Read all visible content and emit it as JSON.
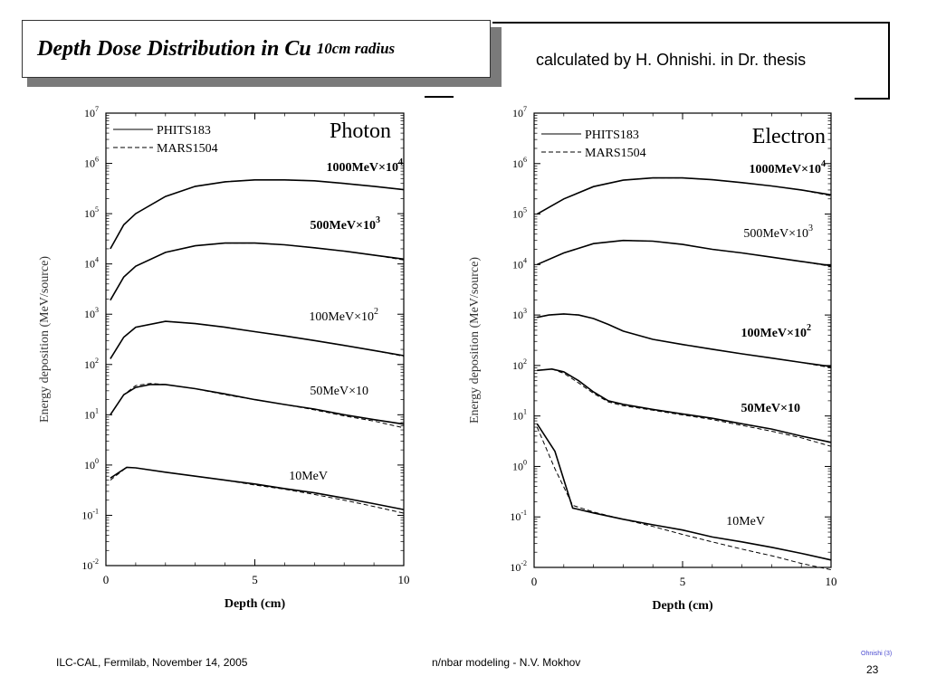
{
  "slide": {
    "title": "Depth Dose Distribution in Cu",
    "title_sub": "10cm radius",
    "credit": "calculated by H. Ohnishi. in Dr. thesis",
    "footer_left": "ILC-CAL, Fermilab, November 14, 2005",
    "footer_center": "n/nbar modeling -  N.V. Mokhov",
    "ref_note": "Ohnishi (3)",
    "page_number": "23"
  },
  "chart_data": [
    {
      "type": "line",
      "title": "Photon",
      "xlabel": "Depth (cm)",
      "ylabel": "Energy deposition (MeV/source)",
      "xlim": [
        0,
        10
      ],
      "ylim": [
        0.01,
        10000000
      ],
      "yscale": "log",
      "x_ticks": [
        "0",
        "5",
        "10"
      ],
      "legend": [
        "PHITS183",
        "MARS1504"
      ],
      "legend_position": "top-left",
      "groups": [
        {
          "label": "1000MeV×10",
          "label_exp": "4",
          "x": [
            0.15,
            0.6,
            1,
            2,
            3,
            4,
            5,
            6,
            7,
            8,
            9,
            10
          ],
          "phits": [
            20000,
            60000,
            100000,
            220000,
            350000,
            430000,
            470000,
            470000,
            450000,
            400000,
            350000,
            300000
          ],
          "mars": [
            20000,
            60000,
            100000,
            220000,
            350000,
            430000,
            470000,
            470000,
            450000,
            400000,
            350000,
            300000
          ]
        },
        {
          "label": "500MeV×10",
          "label_exp": "3",
          "x": [
            0.15,
            0.6,
            1,
            2,
            3,
            4,
            5,
            6,
            7,
            8,
            9,
            10
          ],
          "phits": [
            1900,
            5500,
            9000,
            17000,
            23000,
            26000,
            26000,
            24000,
            21000,
            18000,
            15000,
            12500
          ],
          "mars": [
            1900,
            5500,
            9000,
            17000,
            23000,
            26000,
            26000,
            24000,
            21000,
            18000,
            15000,
            12000
          ]
        },
        {
          "label": "100MeV×10",
          "label_exp": "2",
          "x": [
            0.15,
            0.6,
            1,
            2,
            3,
            4,
            5,
            6,
            7,
            8,
            9,
            10
          ],
          "phits": [
            130,
            350,
            550,
            720,
            650,
            550,
            450,
            370,
            300,
            240,
            190,
            150
          ],
          "mars": [
            130,
            350,
            550,
            720,
            650,
            550,
            450,
            370,
            300,
            240,
            190,
            145
          ]
        },
        {
          "label": "50MeV×10",
          "label_exp": "",
          "x": [
            0.15,
            0.6,
            1,
            1.5,
            2,
            3,
            4,
            5,
            6,
            7,
            8,
            9,
            10
          ],
          "phits": [
            10,
            25,
            35,
            40,
            40,
            33,
            26,
            20,
            16,
            13,
            10,
            8,
            6.5
          ],
          "mars": [
            10,
            25,
            38,
            42,
            40,
            33,
            25,
            20,
            16,
            12.5,
            9.5,
            7.5,
            5.5
          ]
        },
        {
          "label": "10MeV",
          "label_exp": "",
          "x": [
            0.15,
            0.7,
            1,
            2,
            3,
            4,
            5,
            6,
            7,
            8,
            9,
            10
          ],
          "phits": [
            0.55,
            0.9,
            0.88,
            0.72,
            0.6,
            0.5,
            0.42,
            0.34,
            0.28,
            0.22,
            0.17,
            0.13
          ],
          "mars": [
            0.5,
            0.9,
            0.88,
            0.72,
            0.6,
            0.5,
            0.4,
            0.33,
            0.26,
            0.2,
            0.15,
            0.11
          ]
        }
      ]
    },
    {
      "type": "line",
      "title": "Electron",
      "xlabel": "Depth (cm)",
      "ylabel": "Energy deposition (MeV/source)",
      "xlim": [
        0,
        10
      ],
      "ylim": [
        0.01,
        10000000
      ],
      "yscale": "log",
      "x_ticks": [
        "0",
        "5",
        "10"
      ],
      "legend": [
        "PHITS183",
        "MARS1504"
      ],
      "legend_position": "top-left",
      "groups": [
        {
          "label": "1000MeV×10",
          "label_exp": "4",
          "x": [
            0.1,
            1,
            2,
            3,
            4,
            5,
            6,
            7,
            8,
            9,
            10
          ],
          "phits": [
            100000,
            200000,
            350000,
            470000,
            520000,
            520000,
            480000,
            420000,
            360000,
            300000,
            240000
          ],
          "mars": [
            100000,
            200000,
            350000,
            470000,
            520000,
            520000,
            480000,
            420000,
            360000,
            300000,
            230000
          ]
        },
        {
          "label": "500MeV×10",
          "label_exp": "3",
          "x": [
            0.1,
            1,
            2,
            3,
            4,
            5,
            6,
            7,
            8,
            9,
            10
          ],
          "phits": [
            10000,
            17000,
            26000,
            30000,
            29000,
            25000,
            20000,
            17000,
            14000,
            11500,
            9500
          ],
          "mars": [
            10000,
            17000,
            26000,
            30000,
            29000,
            25000,
            20000,
            17000,
            14000,
            11500,
            9200
          ]
        },
        {
          "label": "100MeV×10",
          "label_exp": "2",
          "x": [
            0.1,
            0.5,
            1,
            1.5,
            2,
            2.5,
            3,
            4,
            5,
            6,
            7,
            8,
            9,
            10
          ],
          "phits": [
            900,
            1000,
            1050,
            1000,
            850,
            650,
            480,
            330,
            260,
            210,
            170,
            140,
            115,
            95
          ],
          "mars": [
            900,
            1000,
            1050,
            1000,
            850,
            650,
            480,
            330,
            260,
            210,
            170,
            140,
            115,
            90
          ]
        },
        {
          "label": "50MeV×10",
          "label_exp": "",
          "x": [
            0.1,
            0.6,
            1,
            1.5,
            2,
            2.5,
            3,
            4,
            5,
            6,
            7,
            8,
            9,
            10
          ],
          "phits": [
            80,
            85,
            75,
            50,
            30,
            20,
            17,
            13.5,
            11,
            9,
            7,
            5.5,
            4,
            3
          ],
          "mars": [
            80,
            85,
            70,
            45,
            28,
            19,
            16,
            13,
            10.5,
            8.5,
            6.5,
            5,
            3.7,
            2.5
          ]
        },
        {
          "label": "10MeV",
          "label_exp": "",
          "x": [
            0.1,
            0.7,
            1.3,
            2,
            3,
            4,
            5,
            6,
            7,
            8,
            9,
            10
          ],
          "phits": [
            7,
            2,
            0.15,
            0.12,
            0.09,
            0.07,
            0.055,
            0.04,
            0.032,
            0.025,
            0.019,
            0.014
          ],
          "mars": [
            6,
            0.9,
            0.17,
            0.125,
            0.09,
            0.065,
            0.045,
            0.032,
            0.023,
            0.017,
            0.012,
            0.009
          ]
        }
      ]
    }
  ]
}
